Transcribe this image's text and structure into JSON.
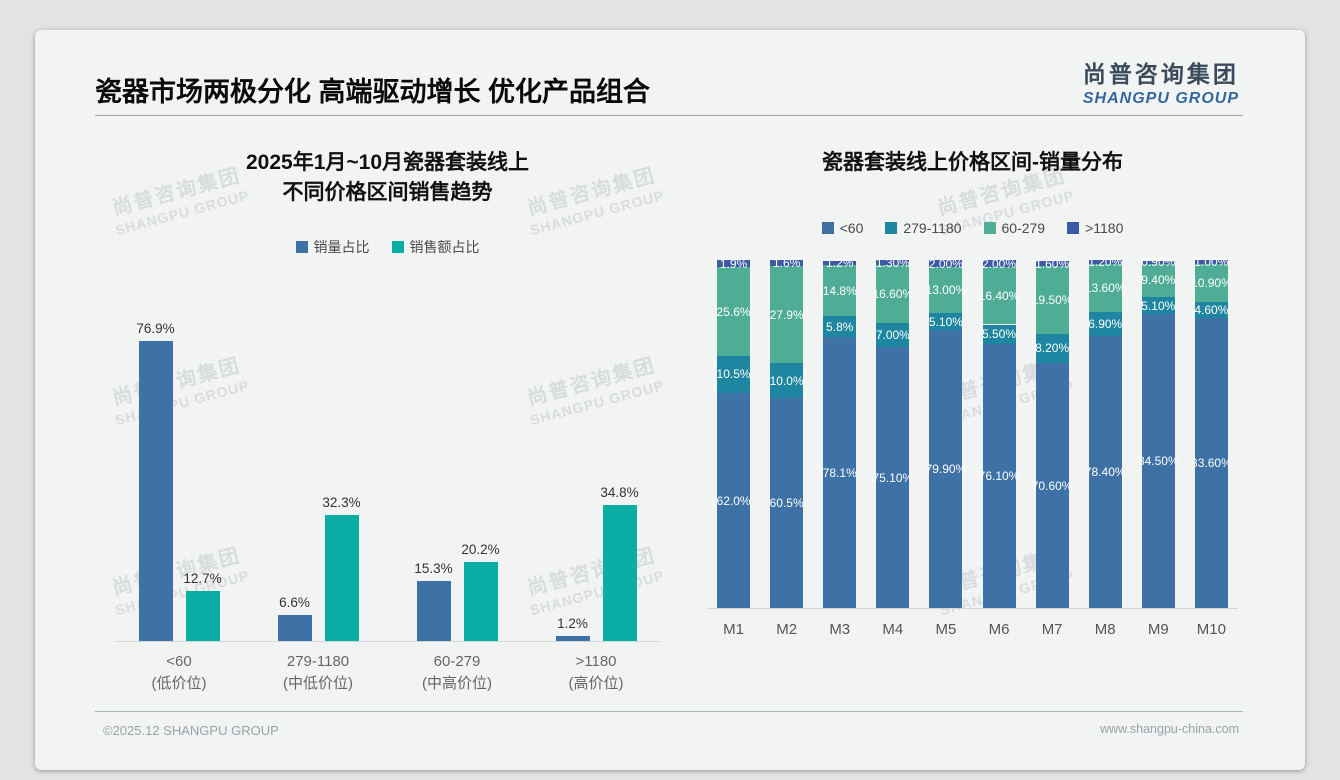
{
  "page": {
    "title": "瓷器市场两极分化 高端驱动增长 优化产品组合",
    "logo": {
      "cn": "尚普咨询集团",
      "en": "SHANGPU GROUP"
    },
    "watermark": {
      "cn": "尚普咨询集团",
      "en": "SHANGPU GROUP"
    },
    "footer": {
      "left": "©2025.12 SHANGPU GROUP",
      "right": "www.shangpu-china.com"
    }
  },
  "colors": {
    "steel_blue": "#3E72A6",
    "bright_teal": "#0BAEA4",
    "dark_teal": "#1E86A0",
    "sea_green": "#4FAD96",
    "navy": "#3E59A6"
  },
  "chart_data": [
    {
      "type": "bar",
      "stacked": false,
      "title_line1": "2025年1月~10月瓷器套装线上",
      "title_line2": "不同价格区间销售趋势",
      "categories": [
        "<60",
        "279-1180",
        "60-279",
        ">1180"
      ],
      "category_sublabels": [
        "(低价位)",
        "(中低价位)",
        "(中高价位)",
        "(高价位)"
      ],
      "series": [
        {
          "name": "销量占比",
          "color": "#3E72A6",
          "values": [
            76.9,
            6.6,
            15.3,
            1.2
          ],
          "labels": [
            "76.9%",
            "6.6%",
            "15.3%",
            "1.2%"
          ]
        },
        {
          "name": "销售额占比",
          "color": "#0BAEA4",
          "values": [
            12.7,
            32.3,
            20.2,
            34.8
          ],
          "labels": [
            "12.7%",
            "32.3%",
            "20.2%",
            "34.8%"
          ]
        }
      ],
      "ylim": [
        0,
        100
      ],
      "legend_position": "top",
      "grid": false
    },
    {
      "type": "bar",
      "stacked": true,
      "title": "瓷器套装线上价格区间-销量分布",
      "categories": [
        "M1",
        "M2",
        "M3",
        "M4",
        "M5",
        "M6",
        "M7",
        "M8",
        "M9",
        "M10"
      ],
      "series": [
        {
          "name": "<60",
          "color": "#3E72A6",
          "values": [
            62.0,
            60.5,
            78.1,
            75.1,
            79.9,
            76.1,
            70.6,
            78.4,
            84.5,
            83.6
          ],
          "labels": [
            "62.0%",
            "60.5%",
            "78.1%",
            "75.10%",
            "79.90%",
            "76.10%",
            "70.60%",
            "78.40%",
            "84.50%",
            "83.60%"
          ]
        },
        {
          "name": "279-1180",
          "color": "#1E86A0",
          "values": [
            10.5,
            10.0,
            5.8,
            7.0,
            5.1,
            5.5,
            8.2,
            6.9,
            5.1,
            4.6
          ],
          "labels": [
            "10.5%",
            "10.0%",
            "5.8%",
            "7.00%",
            "5.10%",
            "5.50%",
            "8.20%",
            "6.90%",
            "5.10%",
            "4.60%"
          ]
        },
        {
          "name": "60-279",
          "color": "#4FAD96",
          "values": [
            25.6,
            27.9,
            14.8,
            16.6,
            13.0,
            16.4,
            19.5,
            13.6,
            9.4,
            10.9
          ],
          "labels": [
            "25.6%",
            "27.9%",
            "14.8%",
            "16.60%",
            "13.00%",
            "16.40%",
            "19.50%",
            "13.60%",
            "9.40%",
            "10.90%"
          ]
        },
        {
          "name": ">1180",
          "color": "#3E59A6",
          "values": [
            1.9,
            1.6,
            1.2,
            1.3,
            2.0,
            2.0,
            1.6,
            1.2,
            0.9,
            1.0
          ],
          "labels": [
            "1.9%",
            "1.6%",
            "1.2%",
            "1.30%",
            "2.00%",
            "2.00%",
            "1.60%",
            "1.20%",
            "0.90%",
            "1.00%"
          ]
        }
      ],
      "ylim": [
        0,
        100
      ],
      "legend_position": "top",
      "grid": false
    }
  ]
}
